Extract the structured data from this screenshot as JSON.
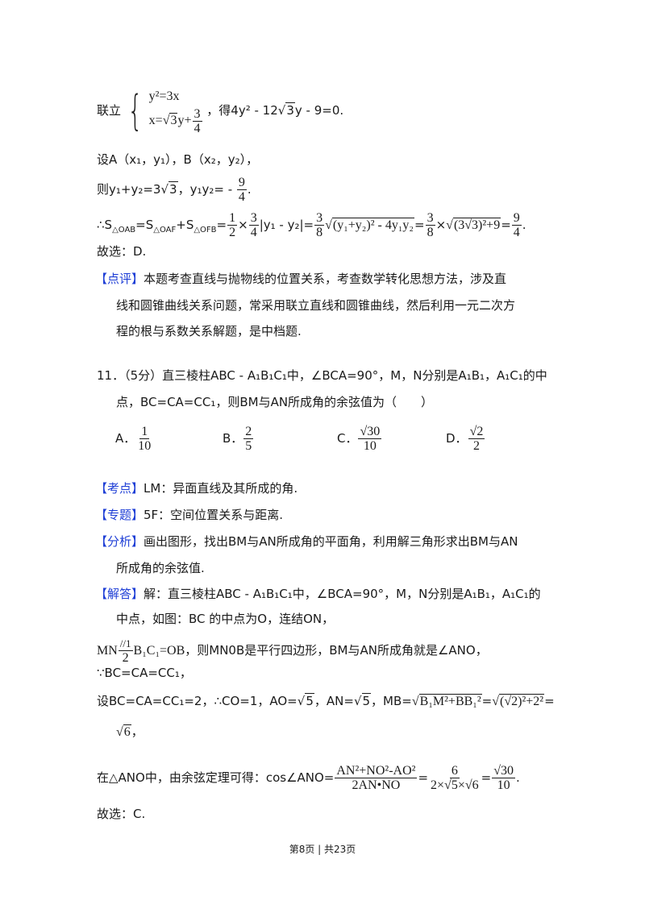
{
  "prev": {
    "l1": {
      "prefix": "联立",
      "eq1": "y²=3x",
      "eq2_a": "x=",
      "eq2_rad": "3",
      "eq2_b": "y+",
      "eq2_num": "3",
      "eq2_den": "4",
      "sfx_a": "，得4y² - 12",
      "sfx_rad": "3",
      "sfx_b": "y - 9=0."
    },
    "l2": "设A（x₁，y₁），B（x₂，y₂），",
    "l3": {
      "a": "则y₁+y₂=3",
      "rad": "3",
      "b": "，y₁y₂= - ",
      "num": "9",
      "den": "4",
      "c": "."
    },
    "l4": {
      "therefore": "∴S",
      "s1": "△OAB",
      "eq": "=S",
      "s2": "△OAF",
      "plus": "+S",
      "s3": "△OFB",
      "eq2": "=",
      "f1n": "1",
      "f1d": "2",
      "times": "×",
      "f2n": "3",
      "f2d": "4",
      "abs": "|y₁ - y₂|=",
      "f3n": "3",
      "f3d": "8",
      "rad1": "(y₁+y₂)² - 4y₁y₂",
      "eq3": "=",
      "f4n": "3",
      "f4d": "8",
      "times2": "×",
      "rad2": "(3√3)²+9",
      "eq4": "=",
      "f5n": "9",
      "f5d": "4",
      "end": "."
    },
    "answer": "故选：D."
  },
  "review": {
    "label": "【点评】",
    "lines": [
      "本题考查直线与抛物线的位置关系，考查数学转化思想方法，涉及直",
      "线和圆锥曲线关系问题，常采用联立直线和圆锥曲线，然后利用一元二次方",
      "程的根与系数关系解题，是中档题."
    ]
  },
  "question": {
    "lines": [
      "11．（5分）直三棱柱ABC - A₁B₁C₁中，∠BCA=90°，M，N分别是A₁B₁，A₁C₁的中",
      "点，BC=CA=CC₁，则BM与AN所成角的余弦值为（　　）"
    ],
    "options": [
      {
        "letter": "A．",
        "num": "1",
        "den": "10"
      },
      {
        "letter": "B．",
        "num": "2",
        "den": "5"
      },
      {
        "letter": "C．",
        "num": "√30",
        "den": "10"
      },
      {
        "letter": "D．",
        "num": "√2",
        "den": "2"
      }
    ]
  },
  "analysis": {
    "kaodian": {
      "label": "【考点】",
      "text": "LM：异面直线及其所成的角."
    },
    "zhuanti": {
      "label": "【专题】",
      "text": "5F：空间位置关系与距离."
    },
    "fenxi": {
      "label": "【分析】",
      "lines": [
        "画出图形，找出BM与AN所成角的平面角，利用解三角形求出BM与AN",
        "所成角的余弦值."
      ]
    },
    "jieda": {
      "label": "【解答】",
      "lines": [
        "解：直三棱柱ABC - A₁B₁C₁中，∠BCA=90°，M，N分别是A₁B₁，A₁C₁的",
        "中点，如图：BC 的中点为O，连结ON，"
      ],
      "l3": {
        "a": "MN",
        "par": "//",
        "num": "1",
        "den": "2",
        "b": "B₁C₁=OB",
        "c": "，则MN0B是平行四边形，BM与AN所成角就是∠ANO，"
      },
      "l4": "∵BC=CA=CC₁，",
      "l5": {
        "a": "设BC=CA=CC₁=2，∴CO=1，AO=",
        "r1": "5",
        "b": "，AN=",
        "r2": "5",
        "c": "，MB=",
        "r3": "B₁M²+BB₁²",
        "d": "=",
        "r4": "(√2)²+2²",
        "e": "="
      },
      "l6": {
        "r": "6",
        "c": "，"
      },
      "l7": {
        "a": "在△ANO中，由余弦定理可得：cos∠ANO=",
        "f1n": "AN²+NO²-AO²",
        "f1d": "2AN•NO",
        "eq": "=",
        "f2n": "6",
        "f2d": "2×√5×√6",
        "eq2": "=",
        "f3n": "√30",
        "f3d": "10",
        "end": "."
      },
      "answer": "故选：C."
    }
  },
  "footer": {
    "text": "第8页 | 共23页"
  }
}
